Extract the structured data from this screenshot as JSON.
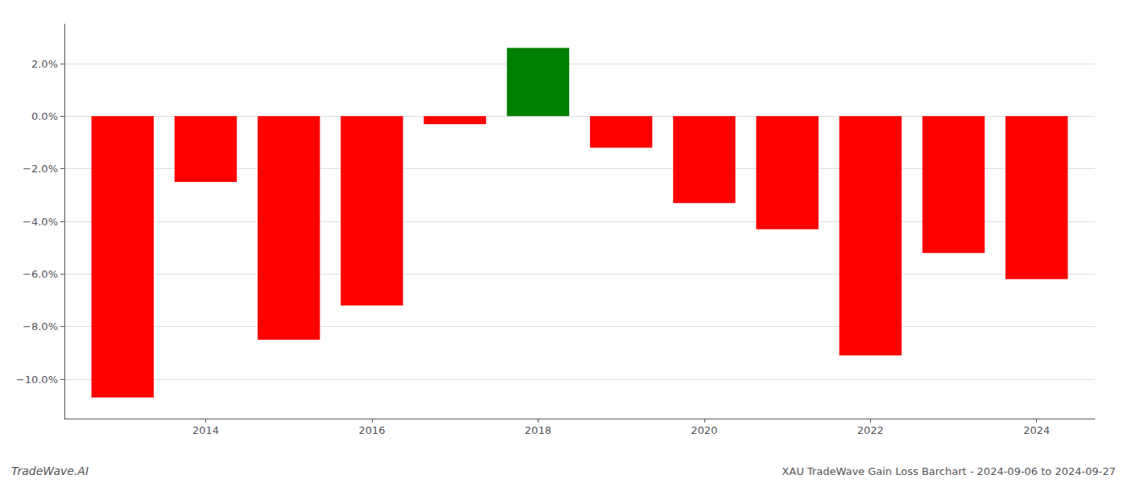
{
  "chart_data": {
    "type": "bar",
    "x": [
      2013,
      2014,
      2015,
      2016,
      2017,
      2018,
      2019,
      2020,
      2021,
      2022,
      2023,
      2024
    ],
    "values": [
      -10.7,
      -2.5,
      -8.5,
      -7.2,
      -0.3,
      2.6,
      -1.2,
      -3.3,
      -4.3,
      -9.1,
      -5.2,
      -6.2
    ],
    "colors": [
      "#ff0000",
      "#ff0000",
      "#ff0000",
      "#ff0000",
      "#ff0000",
      "#008000",
      "#ff0000",
      "#ff0000",
      "#ff0000",
      "#ff0000",
      "#ff0000",
      "#ff0000"
    ],
    "xlim": [
      2012.3,
      2024.7
    ],
    "xticks": [
      2014,
      2016,
      2018,
      2020,
      2022,
      2024
    ],
    "ylim": [
      -11.5,
      3.5
    ],
    "yticks": [
      {
        "value": 2.0,
        "label": "2.0%"
      },
      {
        "value": 0.0,
        "label": "0.0%"
      },
      {
        "value": -2.0,
        "label": "−2.0%"
      },
      {
        "value": -4.0,
        "label": "−4.0%"
      },
      {
        "value": -6.0,
        "label": "−6.0%"
      },
      {
        "value": -8.0,
        "label": "−8.0%"
      },
      {
        "value": -10.0,
        "label": "−10.0%"
      }
    ],
    "grid": true,
    "annotations": [
      "TradeWave.AI",
      "XAU TradeWave Gain Loss Barchart - 2024-09-06 to 2024-09-27"
    ]
  }
}
